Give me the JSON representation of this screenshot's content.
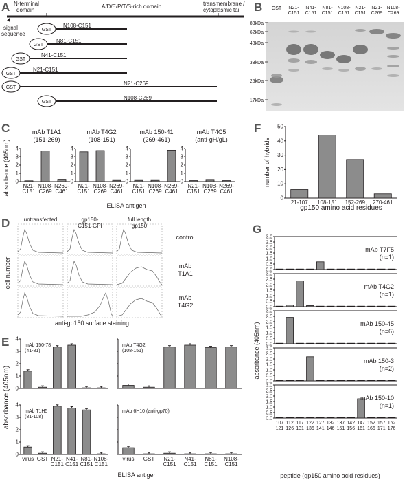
{
  "panel_labels": {
    "a": "A",
    "b": "B",
    "c": "C",
    "d": "D",
    "e": "E",
    "f": "F",
    "g": "G"
  },
  "panelA": {
    "domains": {
      "nterm_line1": "N-terminal",
      "nterm_line2": "domain",
      "rich": "A/D/E/P/T/S-rich domain",
      "tm_line1": "transmembrane /",
      "tm_line2": "cytoplasmic tail",
      "signal_line1": "signal",
      "signal_line2": "sequence"
    },
    "constructs": [
      {
        "tag": "GST",
        "label": "N108-C151"
      },
      {
        "tag": "GST",
        "label": "N81-C151"
      },
      {
        "tag": "GST",
        "label": "N41-C151"
      },
      {
        "tag": "GST",
        "label": "N21-C151"
      },
      {
        "tag": "GST",
        "label": "N21-C269"
      },
      {
        "tag": "GST",
        "label": "N108-C269"
      }
    ]
  },
  "panelB": {
    "lanes": [
      {
        "l1": "GST",
        "l2": ""
      },
      {
        "l1": "N21-",
        "l2": "C151"
      },
      {
        "l1": "N41-",
        "l2": "C151"
      },
      {
        "l1": "N81-",
        "l2": "C151"
      },
      {
        "l1": "N108-",
        "l2": "C151"
      },
      {
        "l1": "N21-",
        "l2": "C151"
      },
      {
        "l1": "N21-",
        "l2": "C269"
      },
      {
        "l1": "N108-",
        "l2": "C269"
      }
    ],
    "markers": [
      "83kDa",
      "62kDa",
      "48kDa",
      "33kDa",
      "25kDa",
      "17kDa"
    ]
  },
  "chart_data": [
    {
      "id": "C",
      "type": "bar",
      "ylabel": "absorbance (405nm)",
      "xlabel": "ELISA antigen",
      "ylim": [
        0,
        4
      ],
      "yticks": [
        "0",
        "1",
        "2",
        "3",
        "4"
      ],
      "categories": [
        [
          "N21-",
          "C151"
        ],
        [
          "N108-",
          "C269"
        ],
        [
          "N269-",
          "C461"
        ]
      ],
      "subplots": [
        {
          "title1": "mAb T1A1",
          "title2": "(151-269)",
          "values": [
            0.1,
            3.7,
            0.2
          ]
        },
        {
          "title1": "mAb T4G2",
          "title2": "(108-151)",
          "values": [
            3.6,
            3.75,
            0.15
          ]
        },
        {
          "title1": "mAb 150-41",
          "title2": "(269-461)",
          "values": [
            0.15,
            0.15,
            3.8
          ]
        },
        {
          "title1": "mAb T4C5",
          "title2": "(anti-gH/gL)",
          "values": [
            0.12,
            0.18,
            0.12
          ]
        }
      ]
    },
    {
      "id": "F",
      "type": "bar",
      "ylabel": "number of hybrids",
      "xlabel": "gp150 amino acid residues",
      "ylim": [
        0,
        50
      ],
      "yticks": [
        "0",
        "10",
        "20",
        "30",
        "40",
        "50"
      ],
      "categories": [
        "21-107",
        "108-151",
        "152-269",
        "270-461"
      ],
      "values": [
        6,
        44,
        27,
        3
      ]
    },
    {
      "id": "D",
      "type": "histogram-grid",
      "ylabel": "cell number",
      "xlabel": "anti-gp150 surface staining",
      "columns": [
        {
          "l1": "untransfected",
          "l2": ""
        },
        {
          "l1": "gp150-",
          "l2": "C151-GPI"
        },
        {
          "l1": "full length",
          "l2": "gp150"
        }
      ],
      "rows": [
        {
          "l1": "control",
          "l2": ""
        },
        {
          "l1": "mAb",
          "l2": "T1A1"
        },
        {
          "l1": "mAb",
          "l2": "T4G2"
        }
      ]
    },
    {
      "id": "E",
      "type": "bar",
      "ylabel": "absorbance (405nm)",
      "xlabel": "ELISA antigen",
      "ylim": [
        0,
        4
      ],
      "yticks": [
        "0",
        "1",
        "2",
        "3",
        "4"
      ],
      "categories": [
        [
          "virus",
          ""
        ],
        [
          "GST",
          ""
        ],
        [
          "N21-",
          "C151"
        ],
        [
          "N41-",
          "C151"
        ],
        [
          "N81-",
          "C151"
        ],
        [
          "N108-",
          "C151"
        ]
      ],
      "subplots": [
        {
          "title1": "mAb 150-78",
          "title2": "(41-81)",
          "values": [
            1.4,
            0.1,
            3.35,
            3.5,
            0.05,
            0.05
          ]
        },
        {
          "title1": "mAb T4G2",
          "title2": "(108-151)",
          "values": [
            0.25,
            0.1,
            3.35,
            3.5,
            3.3,
            3.35
          ]
        },
        {
          "title1": "mAb T1H5",
          "title2": "(81-108)",
          "values": [
            0.6,
            0.1,
            3.9,
            3.75,
            3.6,
            0.05
          ]
        },
        {
          "title1": "mAb 6H10 (anti-gp70)",
          "title2": "",
          "values": [
            0.55,
            0.05,
            0.1,
            0.05,
            0.05,
            0.05
          ]
        }
      ]
    },
    {
      "id": "G",
      "type": "bar",
      "ylabel": "absorbance (405nm)",
      "xlabel": "peptide (gp150 amino acid residues)",
      "ylim": [
        0,
        3
      ],
      "yticks": [
        "0.0",
        "0.5",
        "1.0",
        "1.5",
        "2.0",
        "2.5",
        "3.0"
      ],
      "categories": [
        [
          "107",
          "121"
        ],
        [
          "112",
          "126"
        ],
        [
          "117",
          "131"
        ],
        [
          "122",
          "136"
        ],
        [
          "127",
          "141"
        ],
        [
          "132",
          "146"
        ],
        [
          "137",
          "151"
        ],
        [
          "142",
          "156"
        ],
        [
          "147",
          "161"
        ],
        [
          "152",
          "166"
        ],
        [
          "157",
          "171"
        ],
        [
          "162",
          "176"
        ]
      ],
      "subplots": [
        {
          "title1": "mAb T7F5",
          "title2": "(n=1)",
          "values": [
            0.05,
            0.05,
            0.05,
            0.05,
            0.7,
            0.05,
            0.05,
            0.05,
            0.05,
            0.05,
            0.05,
            0.05
          ]
        },
        {
          "title1": "mAb T4G2",
          "title2": "(n=1)",
          "values": [
            0.05,
            0.15,
            2.35,
            0.1,
            0.05,
            0.05,
            0.05,
            0.05,
            0.05,
            0.05,
            0.05,
            0.05
          ]
        },
        {
          "title1": "mAb 150-45",
          "title2": "(n=6)",
          "values": [
            0.05,
            2.4,
            0.05,
            0.05,
            0.05,
            0.05,
            0.05,
            0.05,
            0.05,
            0.05,
            0.05,
            0.05
          ]
        },
        {
          "title1": "mAb 150-3",
          "title2": "(n=2)",
          "values": [
            0.05,
            0.05,
            0.05,
            2.2,
            0.05,
            0.05,
            0.05,
            0.05,
            0.05,
            0.05,
            0.05,
            0.05
          ]
        },
        {
          "title1": "mAb 150-10",
          "title2": "(n=1)",
          "values": [
            0.05,
            0.05,
            0.05,
            0.05,
            0.05,
            0.05,
            0.05,
            0.05,
            1.75,
            0.05,
            0.05,
            0.05
          ]
        }
      ]
    }
  ]
}
